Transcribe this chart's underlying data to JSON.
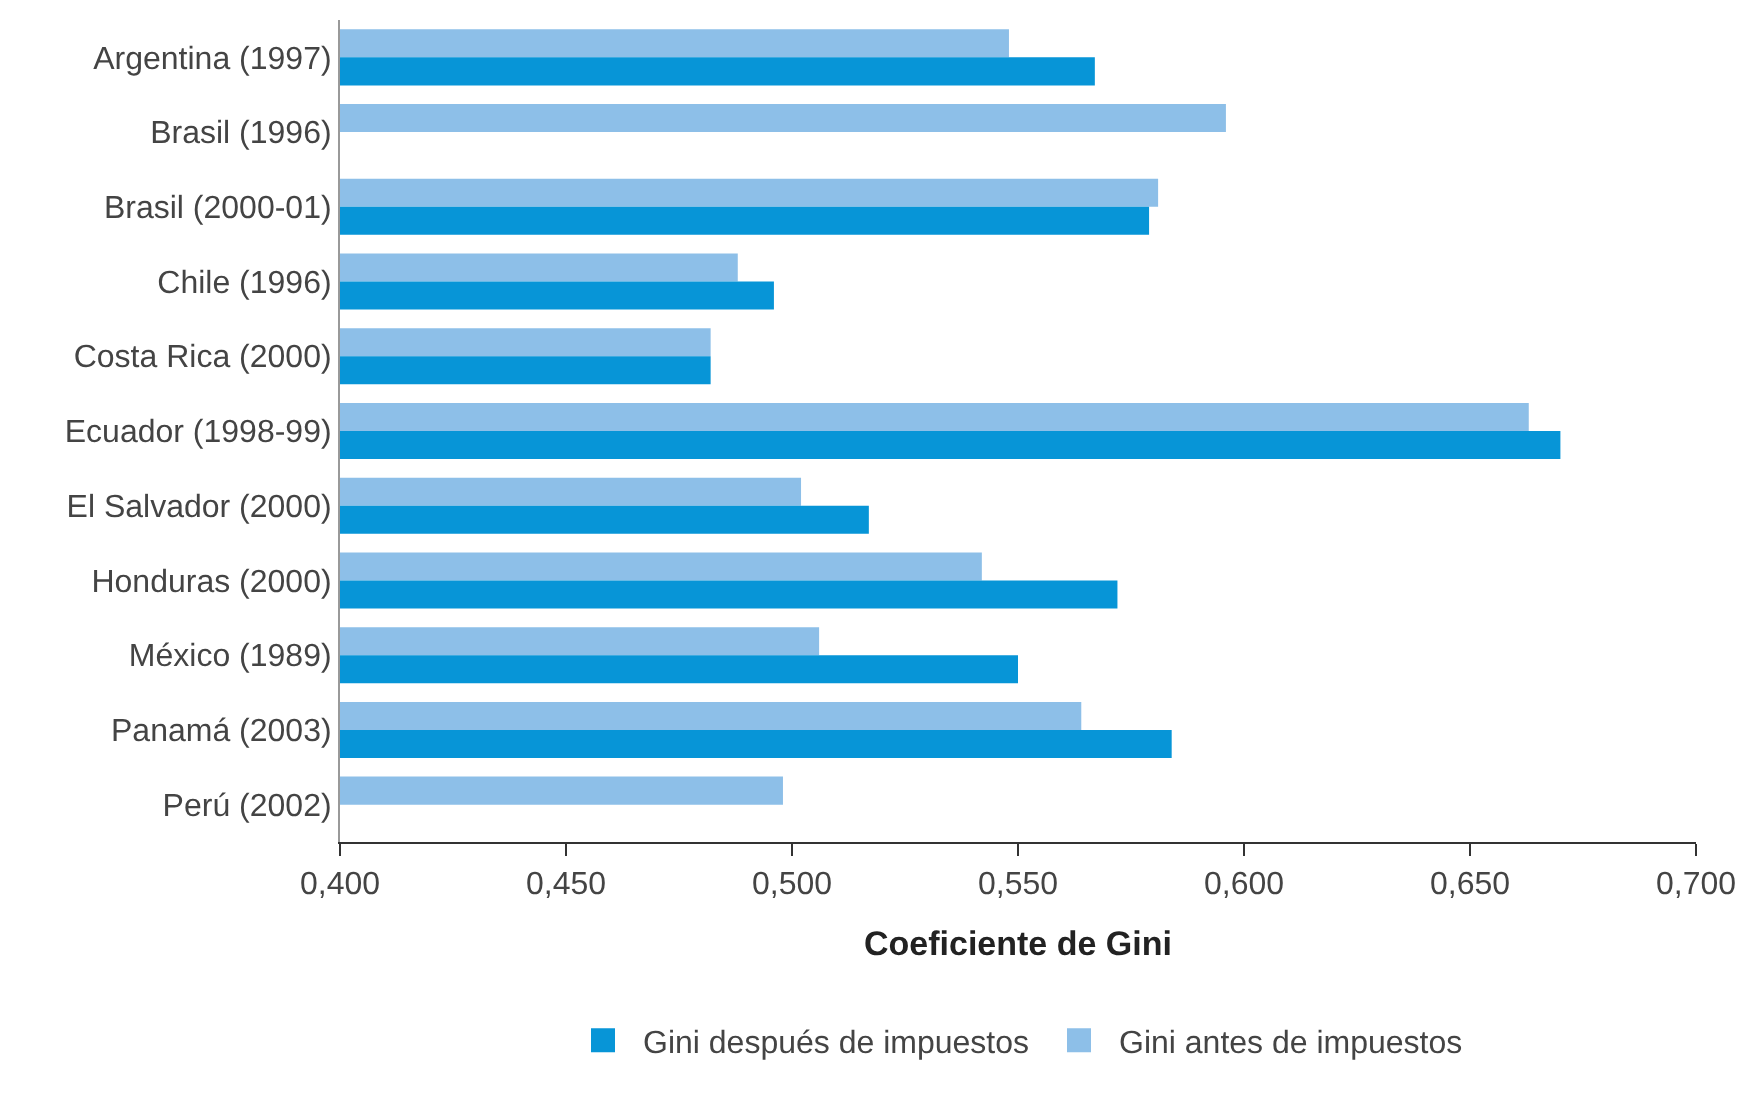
{
  "chart_data": {
    "type": "bar",
    "orientation": "horizontal",
    "xlabel": "Coeficiente de Gini",
    "categories": [
      "Argentina (1997)",
      "Brasil (1996)",
      "Brasil (2000-01)",
      "Chile (1996)",
      "Costa Rica (2000)",
      "Ecuador (1998-99)",
      "El Salvador (2000)",
      "Honduras (2000)",
      "México (1989)",
      "Panamá (2003)",
      "Perú (2002)"
    ],
    "series": [
      {
        "name": "Gini después de impuestos",
        "color": "#0795d7",
        "values": [
          0.567,
          null,
          0.579,
          0.496,
          0.482,
          0.67,
          0.517,
          0.572,
          0.55,
          0.584,
          null
        ]
      },
      {
        "name": "Gini antes de impuestos",
        "color": "#8dbfe8",
        "values": [
          0.548,
          0.596,
          0.581,
          0.488,
          0.482,
          0.663,
          0.502,
          0.542,
          0.506,
          0.564,
          0.498
        ]
      }
    ],
    "xlim": [
      0.4,
      0.7
    ],
    "xticks": [
      {
        "value": 0.4,
        "label": "0,400"
      },
      {
        "value": 0.45,
        "label": "0,450"
      },
      {
        "value": 0.5,
        "label": "0,500"
      },
      {
        "value": 0.55,
        "label": "0,550"
      },
      {
        "value": 0.6,
        "label": "0,600"
      },
      {
        "value": 0.65,
        "label": "0,650"
      },
      {
        "value": 0.7,
        "label": "0,700"
      }
    ],
    "legend": "bottom"
  }
}
